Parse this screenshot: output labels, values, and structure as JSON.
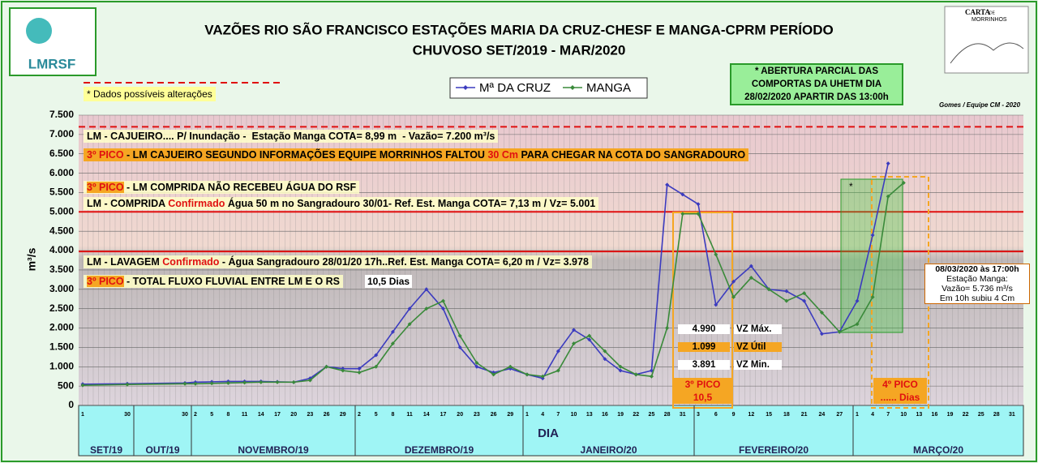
{
  "chart_data": {
    "type": "line",
    "title_lines": [
      "VAZÕES RIO SÃO FRANCISCO ESTAÇÕES MARIA DA CRUZ-CHESF E MANGA-CPRM    PERÍODO",
      "CHUVOSO  SET/2019 - MAR/2020"
    ],
    "ylabel": "m³/s",
    "xlabel": "DIA",
    "months": [
      {
        "name": "SET/19",
        "days": [
          "1",
          "30"
        ]
      },
      {
        "name": "OUT/19",
        "days": [
          "30"
        ]
      },
      {
        "name": "NOVEMBRO/19",
        "days": [
          "2",
          "5",
          "8",
          "11",
          "14",
          "17",
          "20",
          "23",
          "26",
          "29"
        ]
      },
      {
        "name": "DEZEMBRO/19",
        "days": [
          "2",
          "5",
          "8",
          "11",
          "14",
          "17",
          "20",
          "23",
          "26",
          "29"
        ]
      },
      {
        "name": "JANEIRO/20",
        "days": [
          "1",
          "4",
          "7",
          "10",
          "13",
          "16",
          "19",
          "22",
          "25",
          "28",
          "31"
        ]
      },
      {
        "name": "FEVEREIRO/20",
        "days": [
          "3",
          "6",
          "9",
          "12",
          "15",
          "18",
          "21",
          "24",
          "27"
        ]
      },
      {
        "name": "MARÇO/20",
        "days": [
          "1",
          "4",
          "7",
          "10",
          "13",
          "16",
          "19",
          "22",
          "25",
          "28",
          "31"
        ]
      }
    ],
    "series": [
      {
        "name": "Mª DA CRUZ",
        "color": "#3b3bbf",
        "values": [
          550,
          560,
          580,
          600,
          610,
          620,
          620,
          620,
          610,
          600,
          700,
          1000,
          950,
          950,
          1300,
          1900,
          2500,
          3000,
          2500,
          1500,
          1000,
          850,
          950,
          800,
          700,
          1400,
          1950,
          1700,
          1200,
          900,
          800,
          900,
          5700,
          5450,
          5200,
          2600,
          3200,
          3600,
          3000,
          2950,
          2700,
          1850,
          1900,
          2700,
          4400,
          6250,
          null,
          null,
          null,
          null,
          null,
          null,
          null,
          null
        ]
      },
      {
        "name": "MANGA",
        "color": "#3a8a3a",
        "values": [
          520,
          540,
          560,
          560,
          570,
          580,
          590,
          600,
          600,
          600,
          650,
          1000,
          900,
          850,
          1000,
          1600,
          2100,
          2500,
          2700,
          1800,
          1100,
          800,
          1000,
          800,
          750,
          900,
          1600,
          1800,
          1400,
          1000,
          800,
          750,
          2000,
          4950,
          4950,
          3900,
          2800,
          3300,
          3000,
          2700,
          2900,
          2400,
          1900,
          2100,
          2800,
          5400,
          5750,
          null,
          null,
          null,
          null,
          null,
          null,
          null
        ]
      }
    ],
    "ylim": [
      0,
      7500
    ],
    "yticks": [
      0,
      {
        "value": 500,
        "label": "500"
      },
      {
        "value": 1000,
        "label": "1.000"
      },
      {
        "value": 1500,
        "label": "1.500"
      },
      {
        "value": 2000,
        "label": "2.000"
      },
      {
        "value": 2500,
        "label": "2.500"
      },
      {
        "value": 3000,
        "label": "3.000"
      },
      {
        "value": 3500,
        "label": "3.500"
      },
      {
        "value": 4000,
        "label": "4.000"
      },
      {
        "value": 4500,
        "label": "4.500"
      },
      {
        "value": 5000,
        "label": "5.000"
      },
      {
        "value": 5500,
        "label": "5.500"
      },
      {
        "value": 6000,
        "label": "6.000"
      },
      {
        "value": 6500,
        "label": "6.500"
      },
      {
        "value": 7000,
        "label": "7.000"
      },
      {
        "value": 7500,
        "label": "7.500"
      }
    ],
    "grid": true,
    "reference_lines": [
      {
        "value": 7200,
        "color": "#e01010",
        "dashed": true
      },
      {
        "value": 5001,
        "color": "#e01010",
        "dashed": false
      },
      {
        "value": 3978,
        "color": "#e01010",
        "dashed": false
      }
    ],
    "note_top": "* Dados possíveis alterações",
    "box_comportas": [
      "* ABERTURA PARCIAL DAS",
      "COMPORTAS DA UHETM DIA",
      "28/02/2020 APARTIR DAS 13:00h"
    ],
    "credit": "Gomes / Equipe CM - 2020",
    "logo_left": "LMRSF",
    "logo_right": [
      "CARTA",
      "DE",
      "MORRINHOS"
    ],
    "notes": [
      [
        "LM - CAJUEIRO.... P/ Inundação -  Estação Manga COTA= 8,99 m  - Vazão= 7.200 m³/s"
      ],
      [
        "3º PICO",
        " - LM CAJUEIRO SEGUNDO INFORMAÇÕES EQUIPE MORRINHOS FALTOU ",
        "30 Cm",
        " PARA CHEGAR NA COTA DO SANGRADOURO"
      ],
      [
        "3º PICO",
        " - LM COMPRIDA NÃO RECEBEU ÁGUA DO RSF"
      ],
      [
        "LM - COMPRIDA ",
        "Confirmado",
        " Água 50 m no Sangradouro 30/01- Ref. Est. Manga COTA= 7,13 m / Vz= 5.001"
      ],
      [
        "LM - LAVAGEM ",
        "Confirmado",
        " - Água Sangradouro 28/01/20 17h..Ref. Est. Manga COTA= 6,20 m / Vz= 3.978"
      ],
      [
        "3º PICO",
        " - TOTAL FLUXO FLUVIAL ENTRE LM E O RS"
      ]
    ],
    "days_label": "10,5 Dias",
    "vz_table": [
      [
        "4.990",
        "VZ Máx."
      ],
      [
        "1.099",
        "VZ Útil"
      ],
      [
        "3.891",
        "VZ Min."
      ]
    ],
    "peak3": [
      "3º PICO",
      "10,5"
    ],
    "peak4": [
      "4º PICO",
      "...... Dias"
    ],
    "star": "*",
    "callout": [
      "08/03/2020 às 17:00h",
      "Estação Manga:",
      "Vazão= 5.736 m³/s",
      "Em 10h subiu 4 Cm"
    ]
  }
}
